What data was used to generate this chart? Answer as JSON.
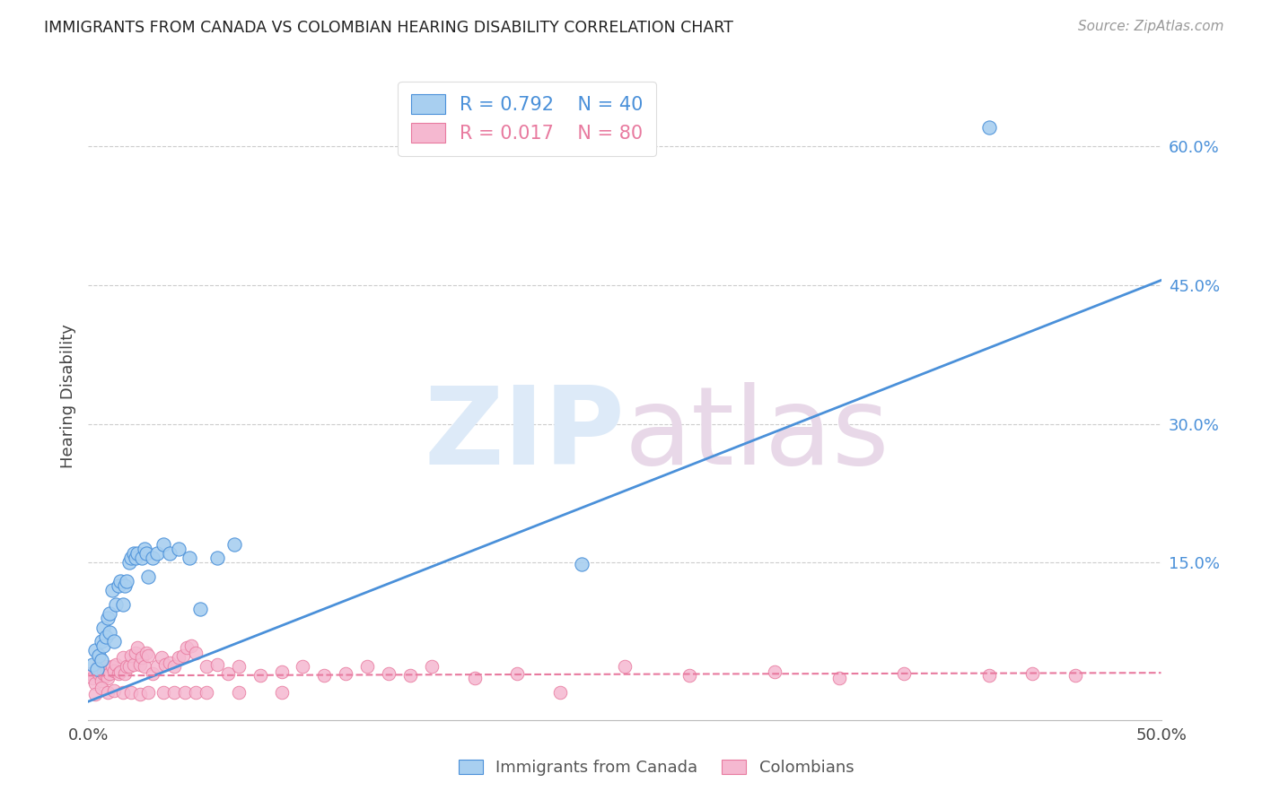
{
  "title": "IMMIGRANTS FROM CANADA VS COLOMBIAN HEARING DISABILITY CORRELATION CHART",
  "source": "Source: ZipAtlas.com",
  "ylabel": "Hearing Disability",
  "ytick_labels": [
    "60.0%",
    "45.0%",
    "30.0%",
    "15.0%"
  ],
  "ytick_values": [
    0.6,
    0.45,
    0.3,
    0.15
  ],
  "xlim": [
    0.0,
    0.5
  ],
  "ylim": [
    -0.02,
    0.68
  ],
  "background_color": "#ffffff",
  "grid_color": "#cccccc",
  "canada_color": "#a8cff0",
  "colombia_color": "#f5b8d0",
  "canada_line_color": "#4a90d9",
  "colombia_line_color": "#e87a9f",
  "canada_R": 0.792,
  "canada_N": 40,
  "colombia_R": 0.017,
  "colombia_N": 80,
  "legend_label_canada": "Immigrants from Canada",
  "legend_label_colombia": "Colombians",
  "canada_points_x": [
    0.002,
    0.003,
    0.004,
    0.005,
    0.006,
    0.006,
    0.007,
    0.007,
    0.008,
    0.009,
    0.01,
    0.01,
    0.011,
    0.012,
    0.013,
    0.014,
    0.015,
    0.016,
    0.017,
    0.018,
    0.019,
    0.02,
    0.021,
    0.022,
    0.023,
    0.025,
    0.026,
    0.027,
    0.028,
    0.03,
    0.032,
    0.035,
    0.038,
    0.042,
    0.047,
    0.052,
    0.06,
    0.068,
    0.23,
    0.42
  ],
  "canada_points_y": [
    0.04,
    0.055,
    0.035,
    0.05,
    0.045,
    0.065,
    0.06,
    0.08,
    0.07,
    0.09,
    0.075,
    0.095,
    0.12,
    0.065,
    0.105,
    0.125,
    0.13,
    0.105,
    0.125,
    0.13,
    0.15,
    0.155,
    0.16,
    0.155,
    0.16,
    0.155,
    0.165,
    0.16,
    0.135,
    0.155,
    0.16,
    0.17,
    0.16,
    0.165,
    0.155,
    0.1,
    0.155,
    0.17,
    0.148,
    0.62
  ],
  "colombia_points_x": [
    0.001,
    0.002,
    0.003,
    0.004,
    0.005,
    0.005,
    0.006,
    0.007,
    0.008,
    0.008,
    0.009,
    0.01,
    0.011,
    0.012,
    0.013,
    0.014,
    0.015,
    0.016,
    0.017,
    0.018,
    0.019,
    0.02,
    0.021,
    0.022,
    0.023,
    0.024,
    0.025,
    0.026,
    0.027,
    0.028,
    0.03,
    0.032,
    0.034,
    0.036,
    0.038,
    0.04,
    0.042,
    0.044,
    0.046,
    0.048,
    0.05,
    0.055,
    0.06,
    0.065,
    0.07,
    0.08,
    0.09,
    0.1,
    0.11,
    0.12,
    0.13,
    0.14,
    0.15,
    0.16,
    0.18,
    0.2,
    0.22,
    0.25,
    0.28,
    0.32,
    0.35,
    0.38,
    0.42,
    0.44,
    0.46,
    0.003,
    0.006,
    0.009,
    0.012,
    0.016,
    0.02,
    0.024,
    0.028,
    0.035,
    0.04,
    0.045,
    0.05,
    0.055,
    0.07,
    0.09
  ],
  "colombia_points_y": [
    0.03,
    0.025,
    0.02,
    0.035,
    0.03,
    0.04,
    0.022,
    0.03,
    0.038,
    0.028,
    0.025,
    0.03,
    0.038,
    0.033,
    0.04,
    0.03,
    0.032,
    0.048,
    0.03,
    0.038,
    0.038,
    0.05,
    0.04,
    0.052,
    0.058,
    0.04,
    0.048,
    0.038,
    0.052,
    0.05,
    0.03,
    0.038,
    0.048,
    0.04,
    0.042,
    0.038,
    0.048,
    0.05,
    0.058,
    0.06,
    0.052,
    0.038,
    0.04,
    0.03,
    0.038,
    0.028,
    0.032,
    0.038,
    0.028,
    0.03,
    0.038,
    0.03,
    0.028,
    0.038,
    0.025,
    0.03,
    0.01,
    0.038,
    0.028,
    0.032,
    0.025,
    0.03,
    0.028,
    0.03,
    0.028,
    0.008,
    0.015,
    0.01,
    0.012,
    0.01,
    0.01,
    0.008,
    0.01,
    0.01,
    0.01,
    0.01,
    0.01,
    0.01,
    0.01,
    0.01
  ],
  "canada_trend_x": [
    0.0,
    0.5
  ],
  "canada_trend_y": [
    0.0,
    0.455
  ],
  "colombia_trend_x": [
    0.0,
    0.5
  ],
  "colombia_trend_y": [
    0.028,
    0.031
  ]
}
